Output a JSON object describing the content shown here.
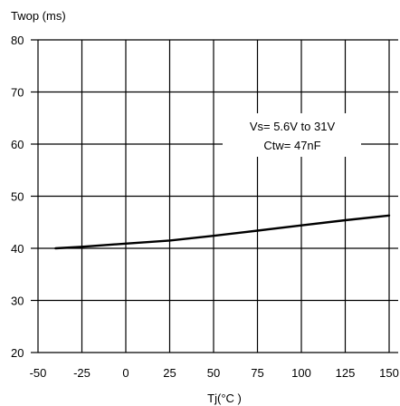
{
  "chart_data": {
    "type": "line",
    "ylabel": "Twop (ms)",
    "xlabel": "Tj(°C )",
    "x_ticks": [
      -50,
      -25,
      0,
      25,
      50,
      75,
      100,
      125,
      150
    ],
    "y_ticks": [
      20,
      30,
      40,
      50,
      60,
      70,
      80
    ],
    "xlim": [
      -50,
      150
    ],
    "ylim": [
      20,
      80
    ],
    "grid": true,
    "annotation": [
      "Vs= 5.6V to 31V",
      "Ctw= 47nF"
    ],
    "series": [
      {
        "x": [
          -40,
          -25,
          0,
          25,
          50,
          75,
          100,
          125,
          150
        ],
        "y": [
          40.0,
          40.3,
          40.9,
          41.5,
          42.4,
          43.4,
          44.4,
          45.4,
          46.3
        ]
      }
    ]
  }
}
